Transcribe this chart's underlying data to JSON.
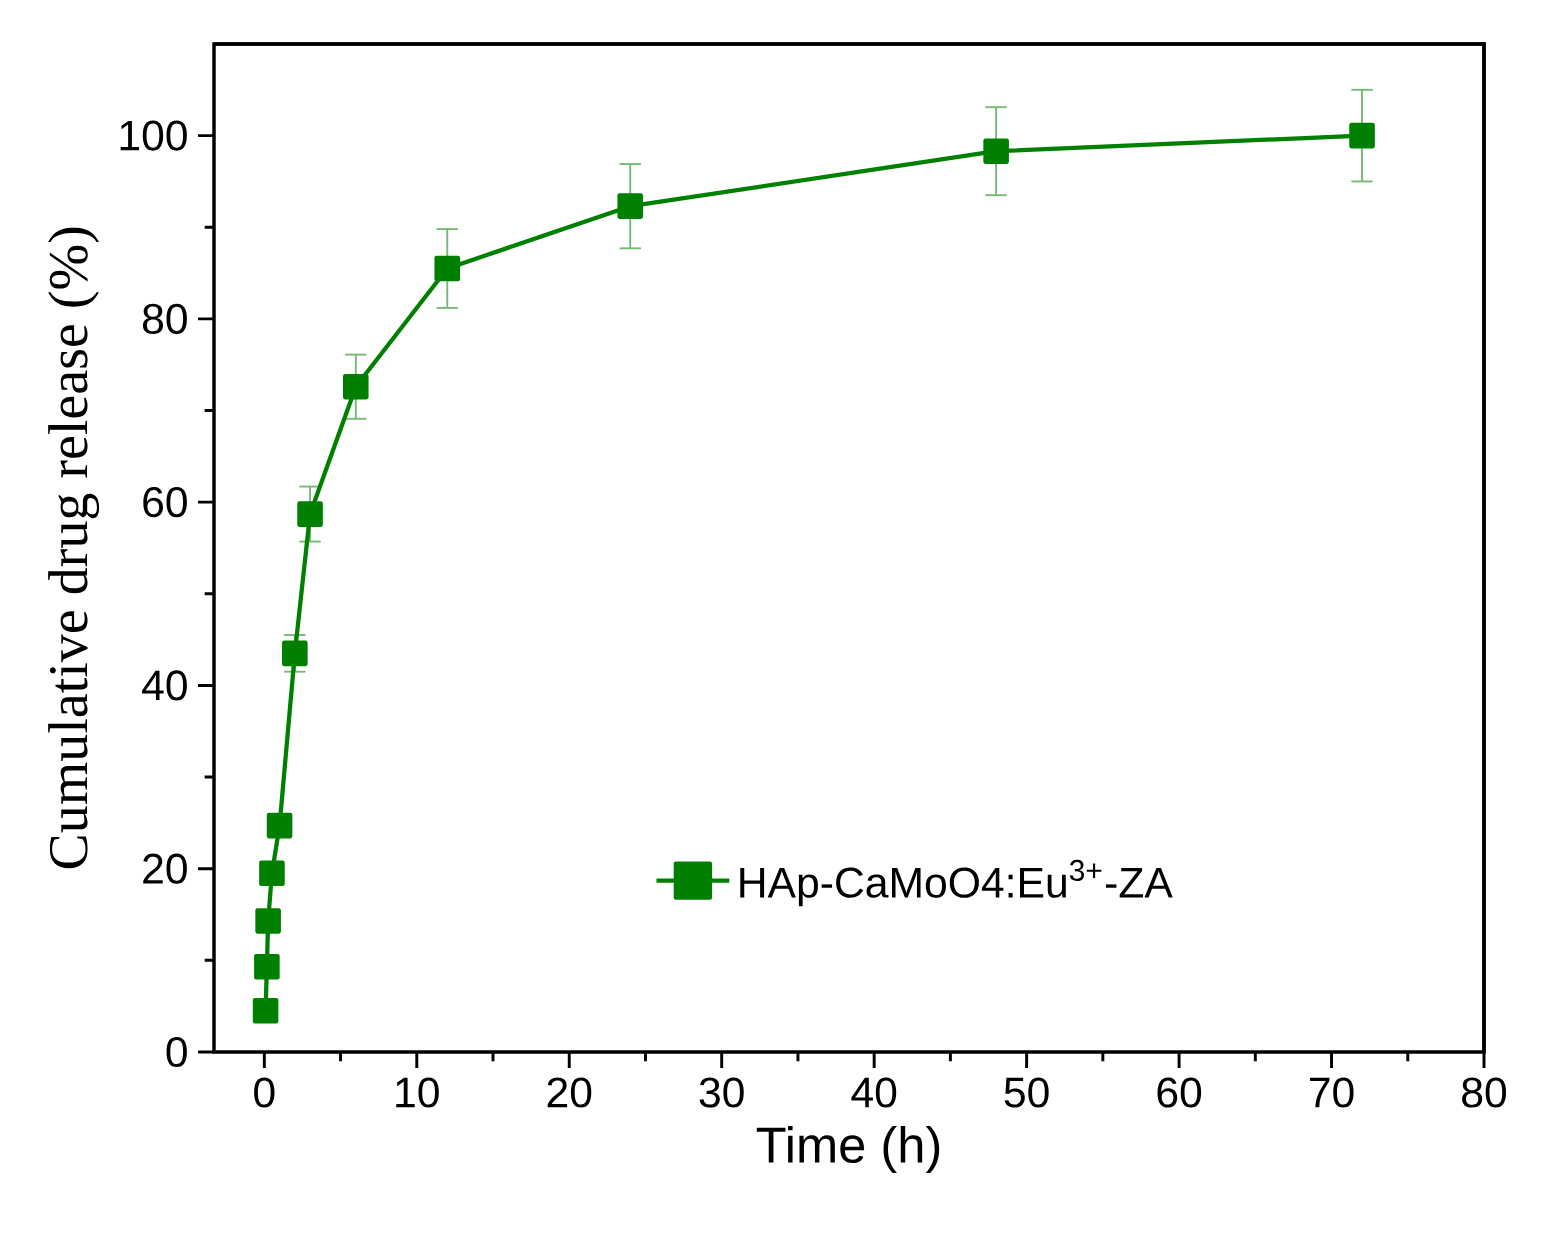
{
  "chart_data": {
    "type": "line",
    "xlabel": "Time (h)",
    "ylabel": "Cumulative drug release (%)",
    "x": [
      0.083,
      0.167,
      0.25,
      0.5,
      1,
      2,
      3,
      6,
      12,
      24,
      48,
      72
    ],
    "series": [
      {
        "name": "HAp-CaMoO4:Eu$^{3+}$-ZA",
        "color": "#008000",
        "values": [
          4.5,
          9.3,
          14.3,
          19.5,
          24.7,
          43.5,
          58.7,
          72.6,
          85.5,
          92.3,
          98.3,
          100
        ],
        "errors": [
          null,
          null,
          null,
          null,
          null,
          2,
          3,
          3.5,
          4.3,
          4.6,
          4.8,
          5
        ]
      }
    ],
    "xlim": [
      -3.3,
      80
    ],
    "ylim": [
      0,
      110
    ],
    "xticks": [
      0,
      10,
      20,
      30,
      40,
      50,
      60,
      70,
      80
    ],
    "yticks": [
      0,
      20,
      40,
      60,
      80,
      100
    ],
    "marker": "square",
    "line_style": "solid",
    "legend": "bottom right",
    "grid": false
  }
}
